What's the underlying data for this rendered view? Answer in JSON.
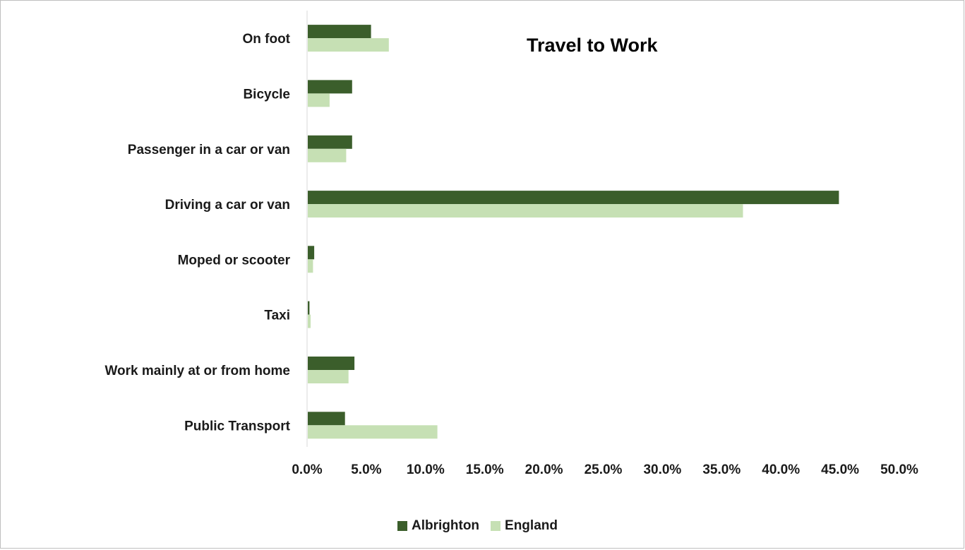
{
  "chart_data": {
    "type": "bar",
    "orientation": "horizontal",
    "title": "Travel to Work",
    "categories": [
      "On foot",
      "Bicycle",
      "Passenger in a car or van",
      "Driving a car or van",
      "Moped or scooter",
      "Taxi",
      "Work mainly at or from home",
      "Public Transport"
    ],
    "series": [
      {
        "name": "Albrighton",
        "color": "#3b5e2b",
        "values": [
          5.4,
          3.8,
          3.8,
          44.9,
          0.6,
          0.2,
          4.0,
          3.2
        ]
      },
      {
        "name": "England",
        "color": "#c6e0b4",
        "values": [
          6.9,
          1.9,
          3.3,
          36.8,
          0.5,
          0.3,
          3.5,
          11.0
        ]
      }
    ],
    "xlim": [
      0,
      50
    ],
    "xticks": [
      "0.0%",
      "5.0%",
      "10.0%",
      "15.0%",
      "20.0%",
      "25.0%",
      "30.0%",
      "35.0%",
      "40.0%",
      "45.0%",
      "50.0%"
    ],
    "grid": false,
    "legend_position": "bottom"
  }
}
